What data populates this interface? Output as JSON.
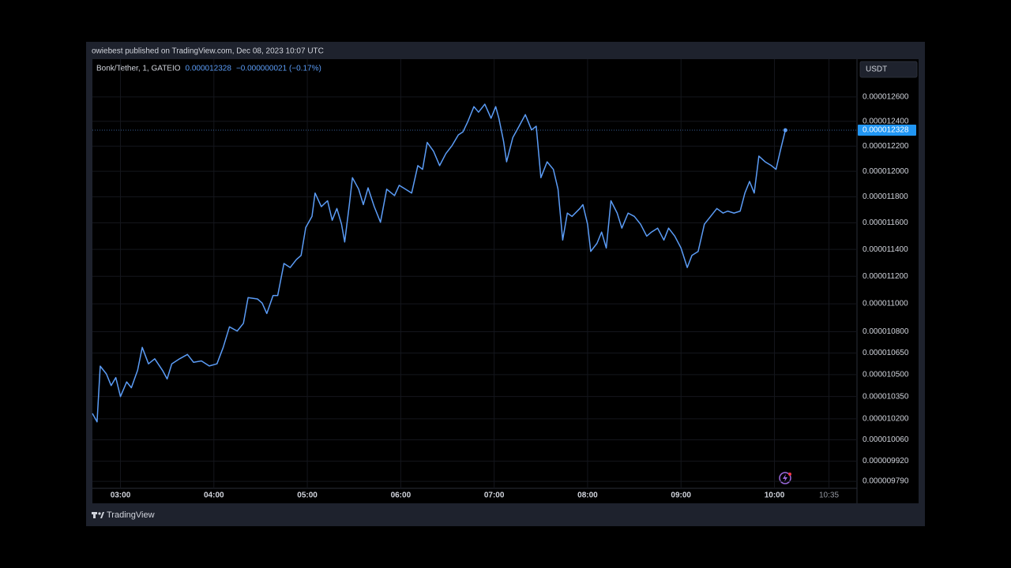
{
  "chart_data": {
    "type": "line",
    "title": "owiebest published on TradingView.com, Dec 08, 2023 10:07 UTC",
    "symbol": "Bonk/Tether, 1, GATEIO",
    "change": "−0.000000021 (−0.17%)",
    "currency": "USDT",
    "brand": "TradingView",
    "log_scale": true,
    "grid": true,
    "x": [
      "02:42",
      "02:45",
      "02:47",
      "02:51",
      "02:54",
      "02:57",
      "03:00",
      "03:04",
      "03:07",
      "03:11",
      "03:14",
      "03:18",
      "03:22",
      "03:27",
      "03:30",
      "03:33",
      "03:38",
      "03:43",
      "03:47",
      "03:52",
      "03:57",
      "04:02",
      "04:06",
      "04:10",
      "04:15",
      "04:19",
      "04:22",
      "04:28",
      "04:31",
      "04:34",
      "04:38",
      "04:41",
      "04:45",
      "04:49",
      "04:53",
      "04:56",
      "04:59",
      "05:03",
      "05:05",
      "05:09",
      "05:13",
      "05:16",
      "05:19",
      "05:22",
      "05:24",
      "05:27",
      "05:29",
      "05:33",
      "05:36",
      "05:39",
      "05:43",
      "05:47",
      "05:51",
      "05:56",
      "05:59",
      "06:03",
      "06:07",
      "06:11",
      "06:14",
      "06:17",
      "06:21",
      "06:25",
      "06:29",
      "06:33",
      "06:37",
      "06:40",
      "06:43",
      "06:47",
      "06:50",
      "06:54",
      "06:58",
      "07:01",
      "07:03",
      "07:06",
      "07:08",
      "07:12",
      "07:16",
      "07:20",
      "07:24",
      "07:27",
      "07:30",
      "07:34",
      "07:38",
      "07:41",
      "07:44",
      "07:47",
      "07:50",
      "07:55",
      "07:57",
      "08:00",
      "08:02",
      "08:06",
      "08:09",
      "08:12",
      "08:15",
      "08:19",
      "08:22",
      "08:26",
      "08:30",
      "08:34",
      "08:38",
      "08:41",
      "08:45",
      "08:49",
      "08:52",
      "08:56",
      "09:00",
      "09:04",
      "09:07",
      "09:11",
      "09:15",
      "09:19",
      "09:23",
      "09:27",
      "09:30",
      "09:34",
      "09:38",
      "09:41",
      "09:44",
      "09:47",
      "09:50",
      "09:54",
      "09:58",
      "10:01",
      "10:04",
      "10:07"
    ],
    "series": [
      {
        "name": "Bonk/Tether",
        "color": "#5b9cf6",
        "values": [
          1.0236e-05,
          1.018e-05,
          1.0559e-05,
          1.0505e-05,
          1.0425e-05,
          1.048e-05,
          1.035e-05,
          1.045e-05,
          1.041e-05,
          1.053e-05,
          1.069e-05,
          1.0575e-05,
          1.061e-05,
          1.053e-05,
          1.047e-05,
          1.0575e-05,
          1.061e-05,
          1.064e-05,
          1.0585e-05,
          1.0595e-05,
          1.056e-05,
          1.0575e-05,
          1.069e-05,
          1.0835e-05,
          1.0805e-05,
          1.086e-05,
          1.1045e-05,
          1.1035e-05,
          1.1005e-05,
          1.093e-05,
          1.106e-05,
          1.106e-05,
          1.1295e-05,
          1.1265e-05,
          1.1325e-05,
          1.1355e-05,
          1.1565e-05,
          1.165e-05,
          1.183e-05,
          1.1725e-05,
          1.177e-05,
          1.162e-05,
          1.171e-05,
          1.159e-05,
          1.1455e-05,
          1.174e-05,
          1.195e-05,
          1.186e-05,
          1.174e-05,
          1.187e-05,
          1.1725e-05,
          1.1605e-05,
          1.186e-05,
          1.181e-05,
          1.189e-05,
          1.186e-05,
          1.183e-05,
          1.2045e-05,
          1.2015e-05,
          1.223e-05,
          1.216e-05,
          1.2045e-05,
          1.214e-05,
          1.2205e-05,
          1.229e-05,
          1.2315e-05,
          1.2395e-05,
          1.252e-05,
          1.2475e-05,
          1.254e-05,
          1.2425e-05,
          1.252e-05,
          1.2425e-05,
          1.224e-05,
          1.2075e-05,
          1.227e-05,
          1.236e-05,
          1.2455e-05,
          1.233e-05,
          1.236e-05,
          1.195e-05,
          1.2075e-05,
          1.2015e-05,
          1.186e-05,
          1.147e-05,
          1.1675e-05,
          1.165e-05,
          1.171e-05,
          1.174e-05,
          1.159e-05,
          1.1385e-05,
          1.1445e-05,
          1.153e-05,
          1.141e-05,
          1.177e-05,
          1.1675e-05,
          1.156e-05,
          1.1675e-05,
          1.165e-05,
          1.159e-05,
          1.15e-05,
          1.153e-05,
          1.156e-05,
          1.147e-05,
          1.156e-05,
          1.15e-05,
          1.141e-05,
          1.1265e-05,
          1.1355e-05,
          1.1385e-05,
          1.159e-05,
          1.165e-05,
          1.171e-05,
          1.1675e-05,
          1.169e-05,
          1.1675e-05,
          1.169e-05,
          1.183e-05,
          1.192e-05,
          1.183e-05,
          1.212e-05,
          1.2075e-05,
          1.2045e-05,
          1.2015e-05,
          1.2175e-05,
          1.2328e-05
        ]
      }
    ],
    "xlim": [
      "02:42",
      "10:53"
    ],
    "xticks": [
      "03:00",
      "04:00",
      "05:00",
      "06:00",
      "07:00",
      "08:00",
      "09:00",
      "10:00",
      "10:35"
    ],
    "ylim": [
      9.765e-06,
      1.291e-05
    ],
    "yticks": [
      {
        "value": 1.26e-05,
        "label": "0.000012600"
      },
      {
        "value": 1.24e-05,
        "label": "0.000012400"
      },
      {
        "value": 1.22e-05,
        "label": "0.000012200"
      },
      {
        "value": 1.2e-05,
        "label": "0.000012000"
      },
      {
        "value": 1.18e-05,
        "label": "0.000011800"
      },
      {
        "value": 1.16e-05,
        "label": "0.000011600"
      },
      {
        "value": 1.14e-05,
        "label": "0.000011400"
      },
      {
        "value": 1.12e-05,
        "label": "0.000011200"
      },
      {
        "value": 1.1e-05,
        "label": "0.000011000"
      },
      {
        "value": 1.08e-05,
        "label": "0.000010800"
      },
      {
        "value": 1.065e-05,
        "label": "0.000010650"
      },
      {
        "value": 1.05e-05,
        "label": "0.000010500"
      },
      {
        "value": 1.035e-05,
        "label": "0.000010350"
      },
      {
        "value": 1.02e-05,
        "label": "0.000010200"
      },
      {
        "value": 1.006e-05,
        "label": "0.000010060"
      },
      {
        "value": 9.92e-06,
        "label": "0.000009920"
      },
      {
        "value": 9.79e-06,
        "label": "0.000009790"
      }
    ]
  }
}
